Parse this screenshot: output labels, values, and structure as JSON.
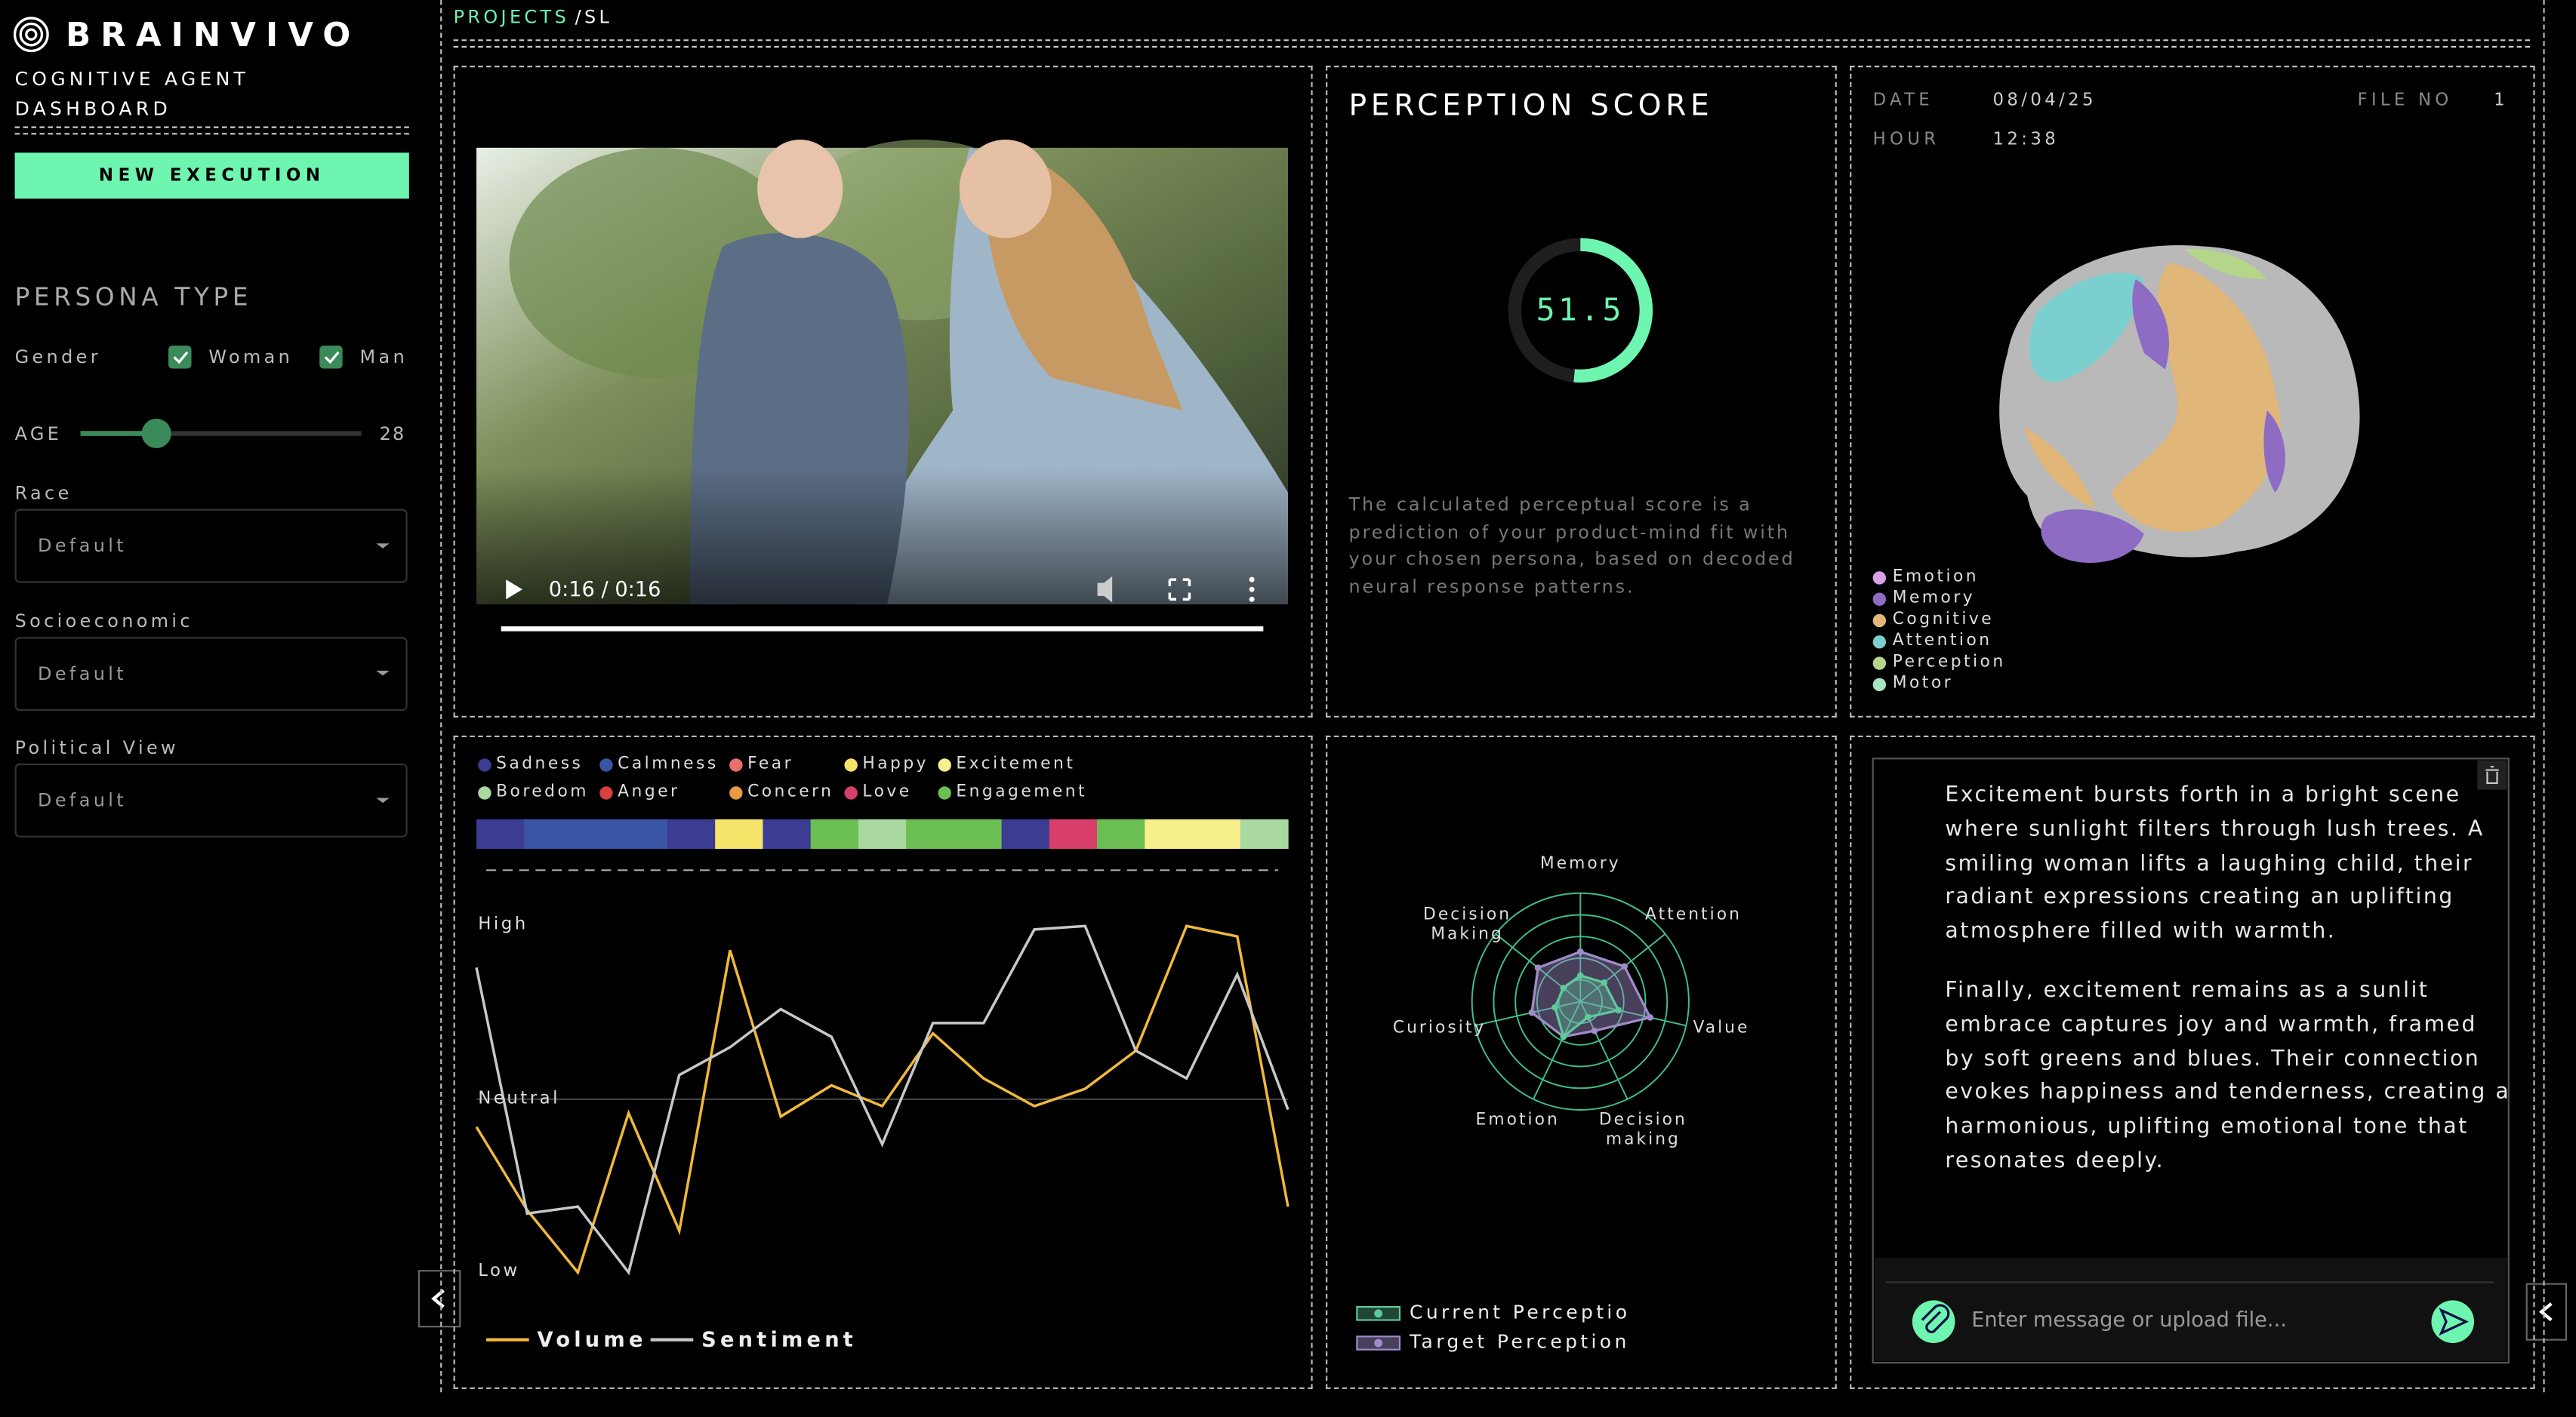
{
  "sidebar": {
    "brand": "BRAINVIVO",
    "subtitle": "COGNITIVE AGENT DASHBOARD",
    "new_execution": "NEW EXECUTION",
    "persona_title": "PERSONA TYPE",
    "gender_label": "Gender",
    "gender_options": [
      {
        "label": "Woman",
        "checked": true
      },
      {
        "label": "Man",
        "checked": true
      }
    ],
    "age_label": "AGE",
    "age": 28,
    "age_range": [
      18,
      55
    ],
    "selects": [
      {
        "label": "Race",
        "value": "Default"
      },
      {
        "label": "Socioeconomic",
        "value": "Default"
      },
      {
        "label": "Political View",
        "value": "Default"
      }
    ]
  },
  "breadcrumb": {
    "root": "PROJECTS",
    "path": "/SL"
  },
  "video": {
    "time": "0:16 / 0:16"
  },
  "perception": {
    "title": "PERCEPTION SCORE",
    "score": 51.5,
    "range": [
      0,
      100
    ],
    "description": "The calculated perceptual score is a prediction of your product-mind fit with your chosen persona, based on decoded neural response patterns."
  },
  "file": {
    "date_label": "DATE",
    "date": "08/04/25",
    "hour_label": "HOUR",
    "hour": "12:38",
    "file_label": "FILE NO",
    "file_no": 1
  },
  "brain_legend": [
    {
      "name": "Emotion",
      "color": "#d7a0e8"
    },
    {
      "name": "Memory",
      "color": "#8e6cc4"
    },
    {
      "name": "Cognitive",
      "color": "#e2b879"
    },
    {
      "name": "Attention",
      "color": "#7ccfcf"
    },
    {
      "name": "Perception",
      "color": "#b5d68a"
    },
    {
      "name": "Motor",
      "color": "#a8e4c0"
    }
  ],
  "chart_data": [
    {
      "type": "strip",
      "legend": [
        {
          "name": "Sadness",
          "color": "#3d3c93"
        },
        {
          "name": "Calmness",
          "color": "#3b55a6"
        },
        {
          "name": "Fear",
          "color": "#e8706a"
        },
        {
          "name": "Happy",
          "color": "#f4e46a"
        },
        {
          "name": "Excitement",
          "color": "#f7ef8c"
        },
        {
          "name": "Boredom",
          "color": "#a9d9a0"
        },
        {
          "name": "Anger",
          "color": "#d9403e"
        },
        {
          "name": "Concern",
          "color": "#e99a42"
        },
        {
          "name": "Love",
          "color": "#d83f6b"
        },
        {
          "name": "Engagement",
          "color": "#6bbf52"
        }
      ],
      "segments": [
        "Sadness",
        "Calmness",
        "Calmness",
        "Calmness",
        "Sadness",
        "Happy",
        "Sadness",
        "Engagement",
        "Boredom",
        "Engagement",
        "Engagement",
        "Sadness",
        "Love",
        "Engagement",
        "Excitement",
        "Excitement",
        "Boredom"
      ]
    },
    {
      "type": "line",
      "ylim": [
        0,
        100
      ],
      "yticks": [
        {
          "value": 100,
          "label": "High"
        },
        {
          "value": 50,
          "label": "Neutral"
        },
        {
          "value": 0,
          "label": "Low"
        }
      ],
      "series": [
        {
          "name": "Volume",
          "color": "#f0b93a",
          "values": [
            42,
            18,
            0,
            46,
            12,
            93,
            45,
            54,
            48,
            69,
            56,
            48,
            53,
            64,
            100,
            97,
            19
          ]
        },
        {
          "name": "Sentiment",
          "color": "#c8c8c8",
          "values": [
            88,
            17,
            19,
            0,
            57,
            65,
            76,
            68,
            37,
            72,
            72,
            99,
            100,
            64,
            56,
            86,
            47
          ]
        }
      ]
    },
    {
      "type": "radar",
      "categories": [
        "Memory",
        "Attention",
        "Value",
        "Decision making",
        "Emotion",
        "Curiosity",
        "Decision Making"
      ],
      "rlim": [
        0,
        5
      ],
      "rticks": [
        1,
        2,
        3,
        4,
        5
      ],
      "series": [
        {
          "name": "Current Perceptio",
          "color": "#5ec99a",
          "values": [
            1.2,
            1.4,
            1.8,
            0.8,
            1.8,
            1.2,
            1.0
          ]
        },
        {
          "name": "Target Perception",
          "color": "#a08cc8",
          "values": [
            2.3,
            2.6,
            3.3,
            1.5,
            1.8,
            2.3,
            2.5
          ]
        }
      ]
    }
  ],
  "summary": {
    "paragraphs": [
      "Excitement bursts forth in a bright scene where sunlight filters through lush trees. A smiling woman lifts a laughing child, their radiant expressions creating an uplifting atmosphere filled with warmth.",
      "Finally, excitement remains as a sunlit embrace captures joy and warmth, framed by soft greens and blues. Their connection evokes happiness and tenderness, creating a harmonious, uplifting emotional tone that resonates deeply."
    ],
    "input_placeholder": "Enter message or upload file..."
  }
}
